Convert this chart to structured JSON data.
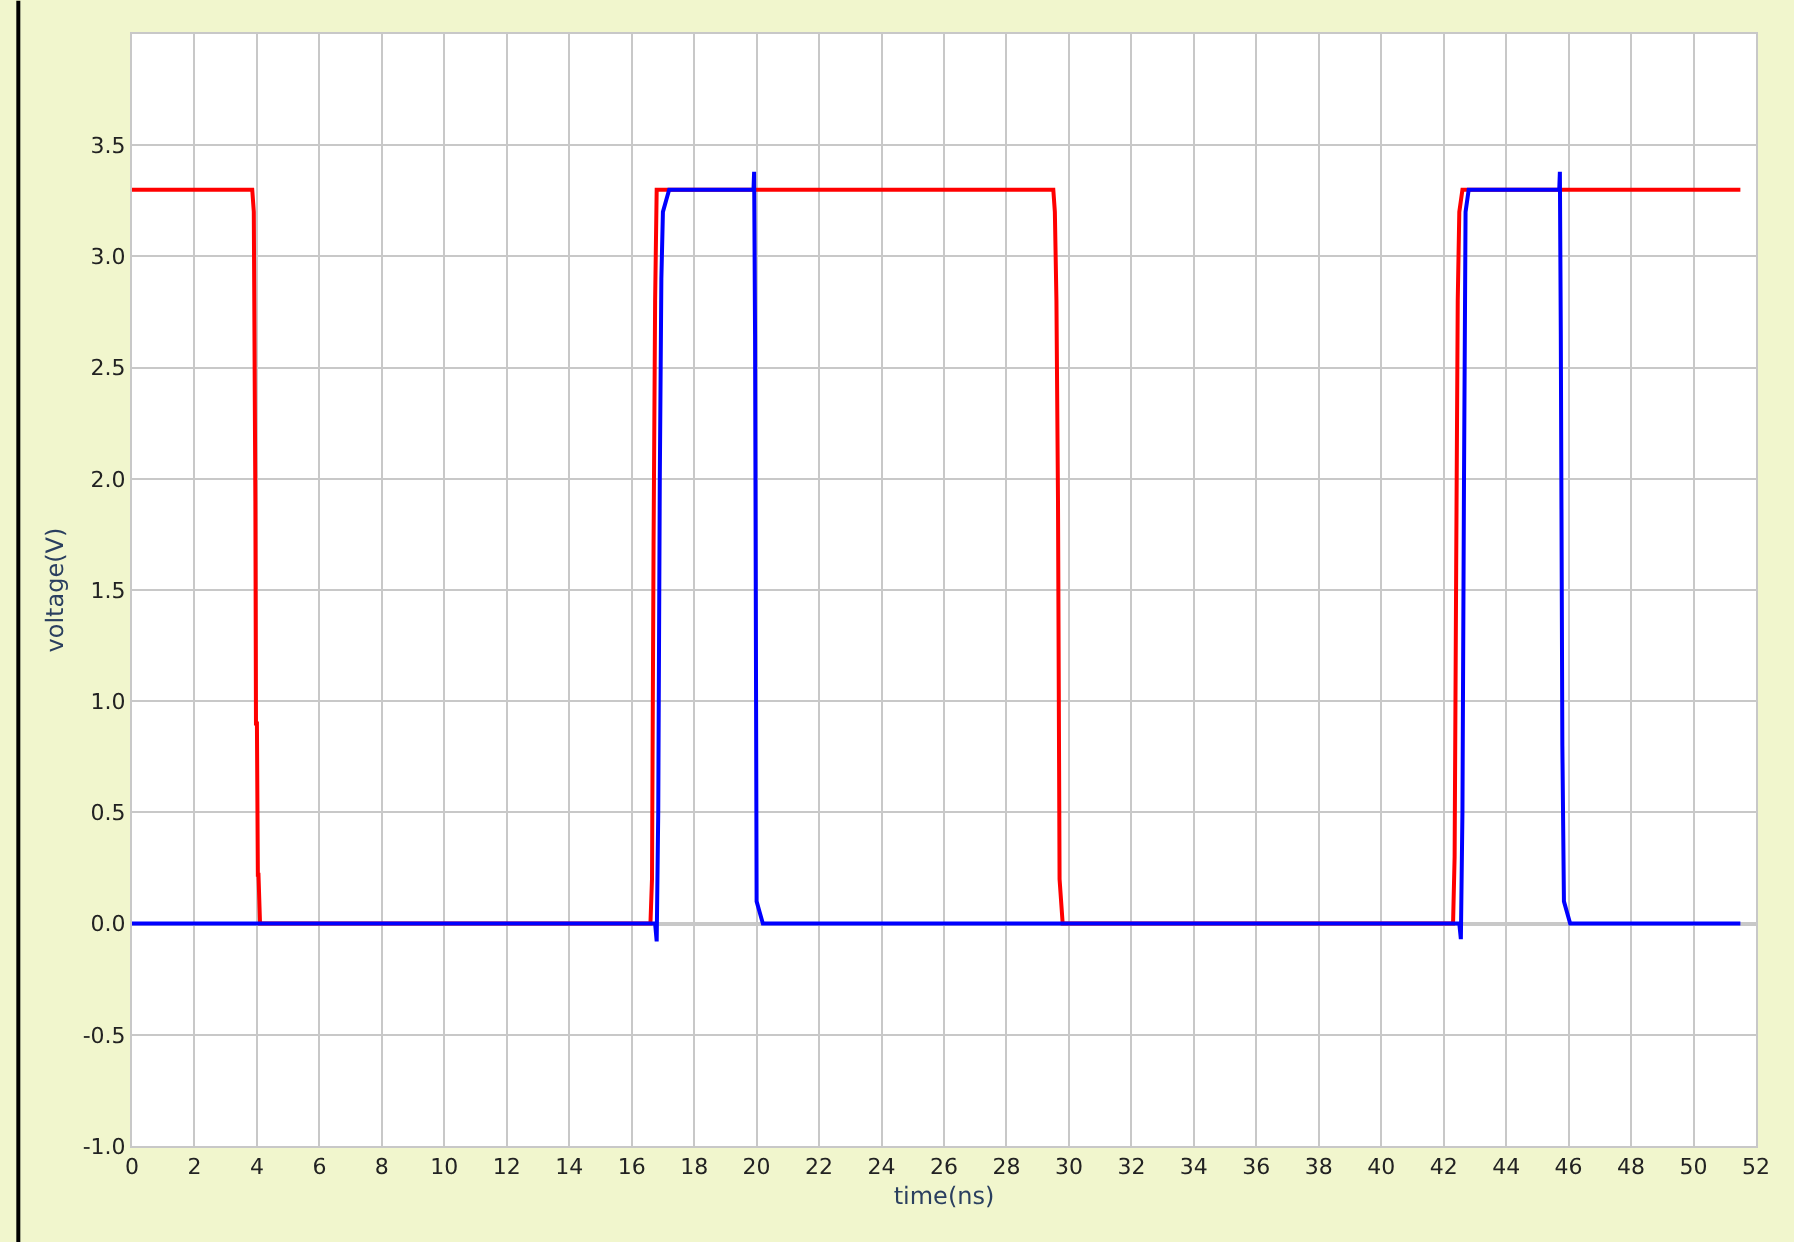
{
  "chart_data": {
    "type": "line",
    "xlabel": "time(ns)",
    "ylabel": "voltage(V)",
    "xlim": [
      0,
      52
    ],
    "ylim": [
      -1,
      4
    ],
    "xticks": [
      0,
      2,
      4,
      6,
      8,
      10,
      12,
      14,
      16,
      18,
      20,
      22,
      24,
      26,
      28,
      30,
      32,
      34,
      36,
      38,
      40,
      42,
      44,
      46,
      48,
      50,
      52
    ],
    "yticks": [
      {
        "value": -1,
        "label": "-1.0"
      },
      -0.5,
      {
        "value": 0,
        "label": "0.0"
      },
      0.5,
      {
        "value": 1,
        "label": "1.0"
      },
      1.5,
      {
        "value": 2,
        "label": "2.0"
      },
      2.5,
      {
        "value": 3,
        "label": "3.0"
      },
      3.5,
      {
        "value": 4,
        "label": null
      }
    ],
    "grid": true,
    "marker": "none",
    "line_style": "solid",
    "series": [
      {
        "color": "#ff0000",
        "x": [
          0,
          3.85,
          3.9,
          3.95,
          3.97,
          4.0,
          4.03,
          4.05,
          4.1,
          16.6,
          16.65,
          16.7,
          16.75,
          16.8,
          16.9,
          29.5,
          29.55,
          29.6,
          29.65,
          29.7,
          29.8,
          42.3,
          42.35,
          42.4,
          42.45,
          42.5,
          42.6,
          51.5
        ],
        "values": [
          3.3,
          3.3,
          3.2,
          1.9,
          0.9,
          0.9,
          0.22,
          0.22,
          0,
          0,
          0.2,
          1.7,
          2.8,
          3.3,
          3.3,
          3.3,
          3.2,
          2.8,
          1.9,
          0.2,
          0,
          0,
          0.3,
          1.6,
          2.8,
          3.2,
          3.3,
          3.3
        ]
      },
      {
        "color": "#0000ff",
        "x": [
          0,
          16.75,
          16.8,
          16.85,
          16.9,
          16.95,
          17.0,
          17.1,
          17.2,
          19.9,
          19.92,
          19.95,
          20.0,
          20.1,
          20.2,
          20.3,
          42.5,
          42.55,
          42.6,
          42.65,
          42.7,
          42.8,
          45.7,
          45.72,
          45.75,
          45.8,
          45.85,
          45.95,
          46.05,
          46.2,
          51.5
        ],
        "values": [
          0,
          0,
          -0.08,
          0.5,
          2.0,
          2.9,
          3.2,
          3.25,
          3.3,
          3.3,
          3.38,
          2.65,
          0.1,
          0.05,
          0,
          0,
          0,
          -0.07,
          0.5,
          2.0,
          3.2,
          3.3,
          3.3,
          3.38,
          2.65,
          0.8,
          0.1,
          0.05,
          0,
          0,
          0
        ]
      }
    ]
  }
}
